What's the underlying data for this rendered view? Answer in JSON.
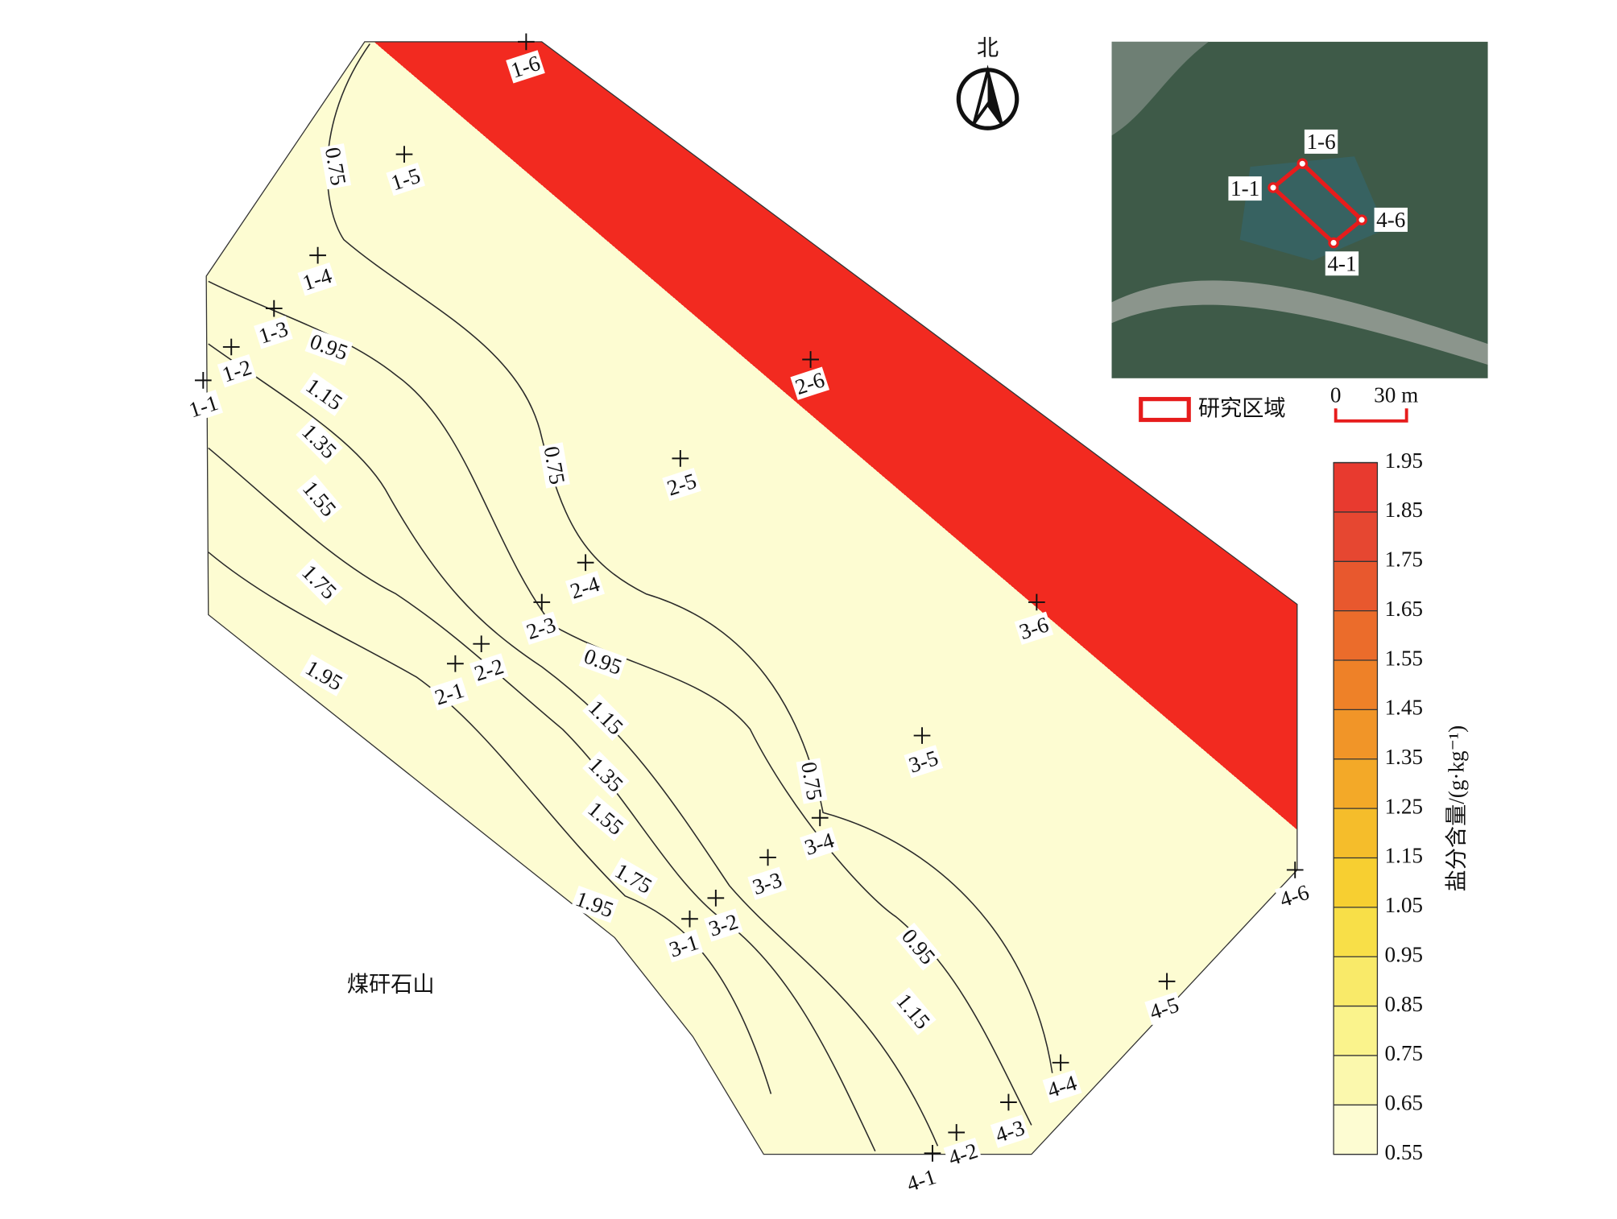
{
  "map": {
    "sample_points": [
      "1-1",
      "1-2",
      "1-3",
      "1-4",
      "1-5",
      "1-6",
      "2-1",
      "2-2",
      "2-3",
      "2-4",
      "2-5",
      "2-6",
      "3-1",
      "3-2",
      "3-3",
      "3-4",
      "3-5",
      "3-6",
      "4-1",
      "4-2",
      "4-3",
      "4-4",
      "4-5",
      "4-6"
    ],
    "contour_labels": [
      0.75,
      0.95,
      1.15,
      1.35,
      1.55,
      1.75,
      1.95,
      0.75,
      0.95,
      1.15,
      1.35,
      1.55,
      1.75,
      1.95,
      0.75,
      0.95,
      1.15
    ],
    "north": "北",
    "area_label": "煤矸石山"
  },
  "inset": {
    "point_labels": [
      "1-6",
      "1-1",
      "4-6",
      "4-1"
    ],
    "legend": "研究区域",
    "scale_labels": [
      "0",
      "30 m"
    ]
  },
  "colorbar": {
    "title": "盐分含量/(g·kg⁻¹)",
    "ticks": [
      0.55,
      0.65,
      0.75,
      0.85,
      0.95,
      1.05,
      1.15,
      1.25,
      1.35,
      1.45,
      1.55,
      1.65,
      1.75,
      1.85,
      1.95
    ],
    "colors": [
      "#fdfcd2",
      "#fbf8ad",
      "#faf38c",
      "#f9ea69",
      "#f8df48",
      "#f7cf31",
      "#f5bd2b",
      "#f3a928",
      "#f19528",
      "#ee8128",
      "#eb6c2b",
      "#e8582e",
      "#e64731",
      "#e83a2f",
      "#f22a20"
    ]
  }
}
